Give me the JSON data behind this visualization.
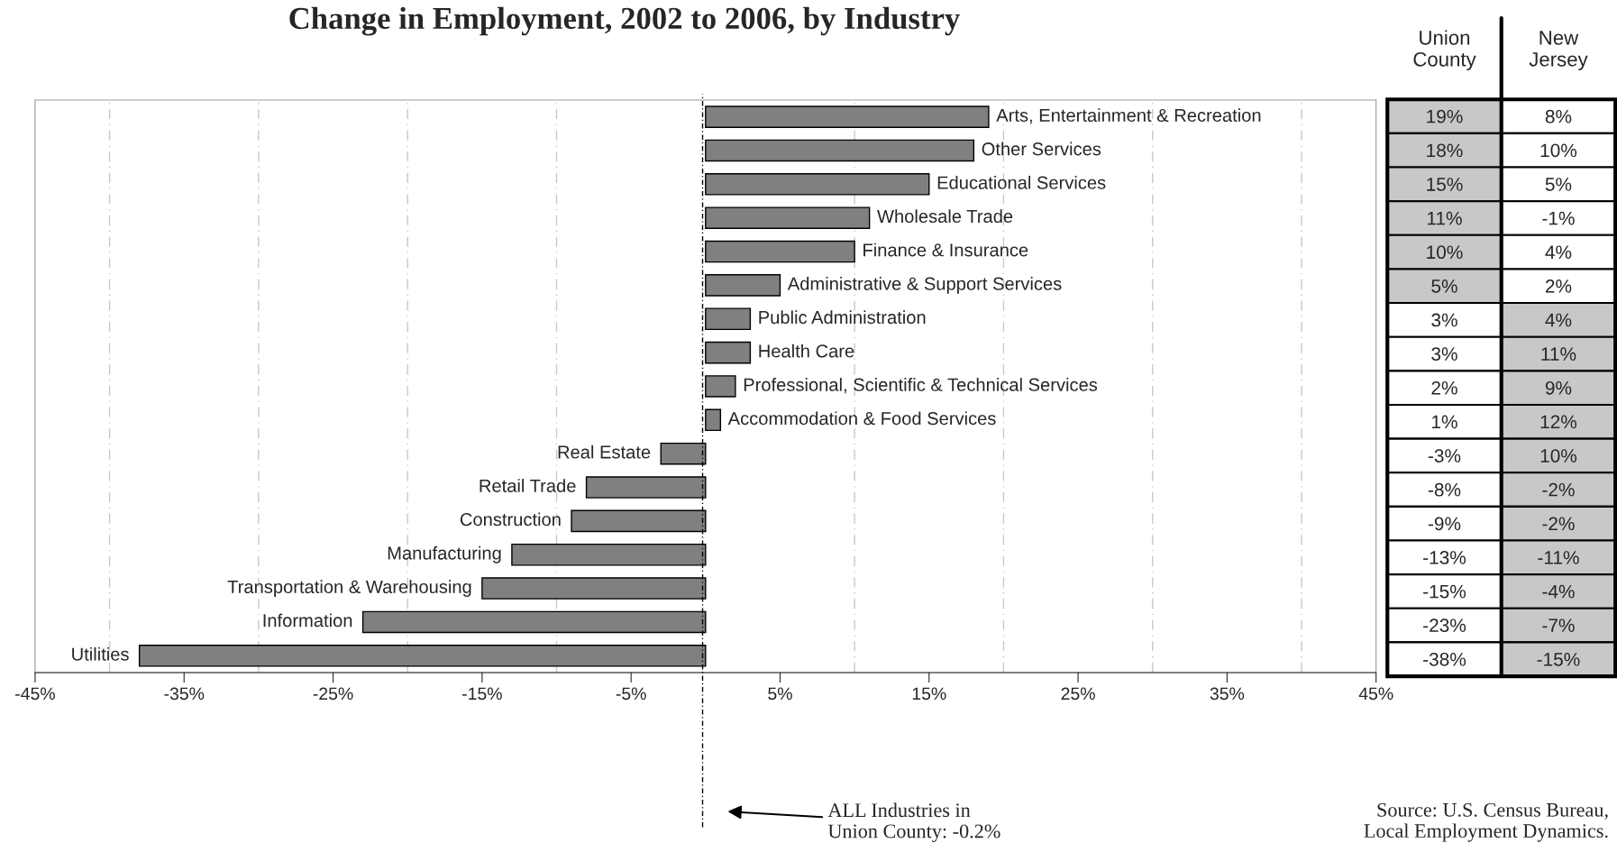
{
  "chart_data": [
    {
      "type": "bar",
      "orientation": "horizontal",
      "title": "Change in Employment, 2002 to 2006, by Industry",
      "categories": [
        "Arts, Entertainment & Recreation",
        "Other Services",
        "Educational Services",
        "Wholesale Trade",
        "Finance & Insurance",
        "Administrative & Support Services",
        "Public Administration",
        "Health Care",
        "Professional, Scientific & Technical Services",
        "Accommodation & Food Services",
        "Real Estate",
        "Retail Trade",
        "Construction",
        "Manufacturing",
        "Transportation & Warehousing",
        "Information",
        "Utilities"
      ],
      "values": [
        19,
        18,
        15,
        11,
        10,
        5,
        3,
        3,
        2,
        1,
        -3,
        -8,
        -9,
        -13,
        -15,
        -23,
        -38
      ],
      "color": "#808080",
      "xlim": [
        -45,
        45
      ],
      "xticks": [
        {
          "value": -45,
          "label": "-45%"
        },
        {
          "value": -35,
          "label": "-35%"
        },
        {
          "value": -25,
          "label": "-25%"
        },
        {
          "value": -15,
          "label": "-15%"
        },
        {
          "value": -5,
          "label": "-5%"
        },
        {
          "value": 5,
          "label": "5%"
        },
        {
          "value": 15,
          "label": "15%"
        },
        {
          "value": 25,
          "label": "25%"
        },
        {
          "value": 35,
          "label": "35%"
        },
        {
          "value": 45,
          "label": "45%"
        },
        {
          "value": -40,
          "label": null
        },
        {
          "value": -30,
          "label": null
        },
        {
          "value": -20,
          "label": null
        },
        {
          "value": -10,
          "label": null
        },
        {
          "value": 10,
          "label": null
        },
        {
          "value": 20,
          "label": null
        },
        {
          "value": 30,
          "label": null
        },
        {
          "value": 40,
          "label": null
        }
      ],
      "grid": "x",
      "tick_labels": "x",
      "ref_lines": [
        {
          "axis": "x",
          "value": -0.2,
          "label": "ALL Industries in\nUnion County: -0.2%",
          "line_style": "dashed",
          "color": "#000000"
        }
      ],
      "annotations": [
        "Source: U.S. Census Bureau,\nLocal Employment Dynamics."
      ]
    },
    {
      "type": "other",
      "categories": [
        "Union\nCounty",
        "New\nJersey"
      ],
      "cell_labels": [
        [
          "19%",
          "8%"
        ],
        [
          "18%",
          "10%"
        ],
        [
          "15%",
          "5%"
        ],
        [
          "11%",
          "-1%"
        ],
        [
          "10%",
          "4%"
        ],
        [
          "5%",
          "2%"
        ],
        [
          "3%",
          "4%"
        ],
        [
          "3%",
          "11%"
        ],
        [
          "2%",
          "9%"
        ],
        [
          "1%",
          "12%"
        ],
        [
          "-3%",
          "10%"
        ],
        [
          "-8%",
          "-2%"
        ],
        [
          "-9%",
          "-2%"
        ],
        [
          "-13%",
          "-11%"
        ],
        [
          "-15%",
          "-4%"
        ],
        [
          "-23%",
          "-7%"
        ],
        [
          "-38%",
          "-15%"
        ]
      ],
      "colors": [
        [
          "#c8c8c8",
          "#ffffff"
        ],
        [
          "#c8c8c8",
          "#ffffff"
        ],
        [
          "#c8c8c8",
          "#ffffff"
        ],
        [
          "#c8c8c8",
          "#ffffff"
        ],
        [
          "#c8c8c8",
          "#ffffff"
        ],
        [
          "#c8c8c8",
          "#ffffff"
        ],
        [
          "#ffffff",
          "#c8c8c8"
        ],
        [
          "#ffffff",
          "#c8c8c8"
        ],
        [
          "#ffffff",
          "#c8c8c8"
        ],
        [
          "#ffffff",
          "#c8c8c8"
        ],
        [
          "#ffffff",
          "#c8c8c8"
        ],
        [
          "#ffffff",
          "#c8c8c8"
        ],
        [
          "#ffffff",
          "#c8c8c8"
        ],
        [
          "#ffffff",
          "#c8c8c8"
        ],
        [
          "#ffffff",
          "#c8c8c8"
        ],
        [
          "#ffffff",
          "#c8c8c8"
        ],
        [
          "#ffffff",
          "#c8c8c8"
        ]
      ]
    }
  ]
}
